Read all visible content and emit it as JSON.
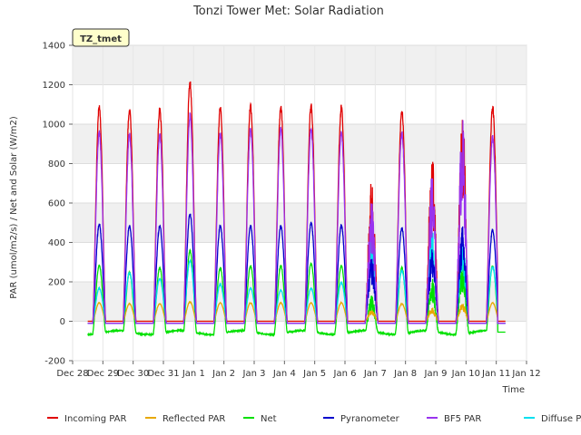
{
  "chart_data": {
    "type": "line",
    "title": "Tonzi Tower Met: Solar Radiation",
    "xlabel": "Time",
    "ylabel": "PAR (umol/m2/s) / Net and Solar (W/m2)",
    "ylim": [
      -200,
      1400
    ],
    "xlim": [
      0,
      15
    ],
    "yticks": [
      -200,
      0,
      200,
      400,
      600,
      800,
      1000,
      1200,
      1400
    ],
    "xtick_positions": [
      0,
      1,
      2,
      3,
      4,
      5,
      6,
      7,
      8,
      9,
      10,
      11,
      12,
      13,
      14,
      15
    ],
    "xtick_labels": [
      "Dec 28",
      "Dec 29",
      "Dec 30",
      "Dec 31",
      "Jan 1",
      "Jan 2",
      "Jan 3",
      "Jan 4",
      "Jan 5",
      "Jan 6",
      "Jan 7",
      "Jan 8",
      "Jan 9",
      "Jan 10",
      "Jan 11",
      "Jan 12"
    ],
    "annotation": "TZ_tmet",
    "grid": true,
    "legend_position": "bottom",
    "day_centers": [
      0.88,
      1.88,
      2.88,
      3.88,
      4.88,
      5.88,
      6.88,
      7.88,
      8.88,
      9.88,
      10.88,
      11.88,
      12.88,
      13.88
    ],
    "series": [
      {
        "name": "Incoming PAR",
        "color": "#e00000",
        "night": 0,
        "peaks": [
          1100,
          1090,
          1090,
          1230,
          1100,
          1110,
          1100,
          1110,
          1100,
          730,
          1080,
          880,
          1110,
          1100
        ]
      },
      {
        "name": "Reflected PAR",
        "color": "#e8a800",
        "night": 0,
        "peaks": [
          95,
          90,
          90,
          100,
          95,
          95,
          95,
          95,
          95,
          60,
          90,
          70,
          95,
          95
        ]
      },
      {
        "name": "Net",
        "color": "#00e000",
        "night": -55,
        "peaks": [
          310,
          280,
          300,
          380,
          300,
          310,
          310,
          320,
          310,
          170,
          300,
          250,
          330,
          310
        ]
      },
      {
        "name": "Pyranometer",
        "color": "#0000cc",
        "night": -10,
        "peaks": [
          500,
          490,
          490,
          550,
          490,
          490,
          490,
          505,
          495,
          330,
          480,
          380,
          490,
          470
        ]
      },
      {
        "name": "BF5 PAR",
        "color": "#9933ee",
        "night": -10,
        "peaks": [
          970,
          960,
          960,
          1060,
          970,
          990,
          990,
          990,
          970,
          620,
          970,
          750,
          1040,
          950
        ]
      },
      {
        "name": "Diffuse PAR",
        "color": "#00e0f0",
        "night": -10,
        "peaks": [
          170,
          250,
          220,
          310,
          190,
          170,
          160,
          170,
          200,
          470,
          260,
          510,
          420,
          280
        ]
      }
    ]
  }
}
